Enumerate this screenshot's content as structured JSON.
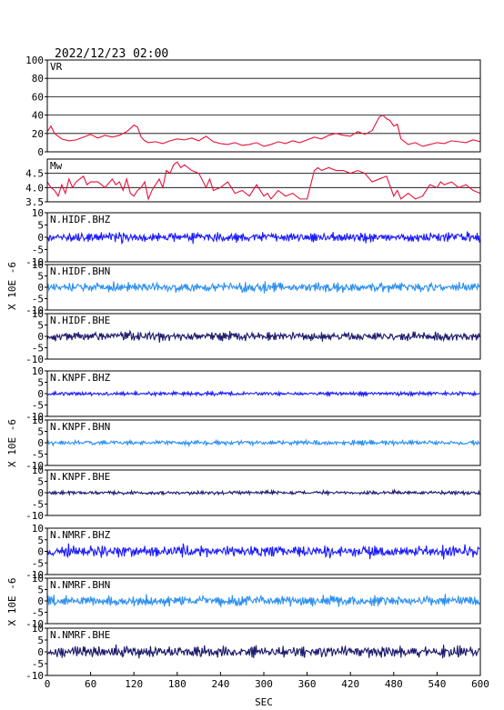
{
  "title": "2022/12/23 02:00",
  "chart_data": {
    "type": "line",
    "xlabel": "SEC",
    "xlim": [
      0,
      600
    ],
    "xticks": [
      0,
      60,
      120,
      180,
      240,
      300,
      360,
      420,
      480,
      540,
      600
    ],
    "panels": [
      {
        "id": "vr",
        "label": "VR",
        "ylim": [
          0,
          100
        ],
        "yticks": [
          0,
          20,
          40,
          60,
          80,
          100
        ],
        "grid": true,
        "color": "#e8103c",
        "x": [
          0,
          5,
          10,
          20,
          30,
          40,
          50,
          60,
          70,
          80,
          90,
          100,
          110,
          120,
          125,
          130,
          135,
          140,
          150,
          160,
          170,
          180,
          190,
          200,
          210,
          220,
          230,
          240,
          250,
          260,
          270,
          280,
          290,
          300,
          310,
          320,
          330,
          340,
          350,
          360,
          370,
          380,
          390,
          400,
          410,
          420,
          430,
          440,
          450,
          460,
          465,
          470,
          475,
          480,
          485,
          490,
          500,
          510,
          520,
          530,
          540,
          550,
          560,
          570,
          580,
          590,
          600
        ],
        "values": [
          22,
          28,
          20,
          14,
          12,
          13,
          16,
          19,
          15,
          18,
          16,
          18,
          22,
          29,
          27,
          16,
          12,
          10,
          11,
          9,
          12,
          14,
          13,
          15,
          12,
          17,
          11,
          9,
          8,
          10,
          7,
          8,
          10,
          6,
          8,
          11,
          9,
          12,
          10,
          13,
          16,
          14,
          18,
          20,
          18,
          17,
          22,
          19,
          23,
          38,
          40,
          36,
          34,
          28,
          30,
          14,
          8,
          10,
          6,
          8,
          10,
          9,
          12,
          11,
          10,
          13,
          11
        ]
      },
      {
        "id": "mw",
        "label": "Mw",
        "ylim": [
          3.5,
          5.0
        ],
        "yticks": [
          3.5,
          4.0,
          4.5
        ],
        "ytick_labels": [
          "3.5",
          "4.0",
          "4.5"
        ],
        "grid": true,
        "color": "#e8103c",
        "x": [
          0,
          5,
          10,
          15,
          20,
          25,
          30,
          35,
          40,
          50,
          55,
          60,
          70,
          80,
          90,
          95,
          100,
          105,
          110,
          115,
          120,
          125,
          130,
          135,
          140,
          145,
          150,
          155,
          160,
          165,
          170,
          175,
          180,
          185,
          190,
          200,
          210,
          220,
          225,
          230,
          240,
          250,
          260,
          270,
          280,
          290,
          300,
          305,
          310,
          320,
          330,
          340,
          350,
          360,
          370,
          375,
          380,
          390,
          400,
          410,
          420,
          430,
          440,
          450,
          460,
          470,
          480,
          485,
          490,
          500,
          510,
          520,
          530,
          540,
          545,
          550,
          560,
          570,
          580,
          590,
          600
        ],
        "values": [
          4.2,
          4.0,
          3.9,
          3.7,
          4.1,
          3.8,
          4.3,
          4.0,
          4.2,
          4.4,
          4.1,
          4.2,
          4.2,
          4.0,
          4.3,
          4.1,
          4.2,
          3.9,
          4.3,
          3.8,
          3.7,
          3.9,
          4.0,
          4.2,
          3.6,
          3.9,
          4.1,
          4.3,
          4.0,
          4.6,
          4.5,
          4.8,
          4.9,
          4.7,
          4.8,
          4.6,
          4.5,
          4.0,
          4.3,
          3.9,
          4.0,
          4.2,
          3.8,
          3.9,
          3.7,
          4.1,
          3.7,
          3.8,
          3.6,
          3.9,
          3.7,
          3.8,
          3.6,
          3.6,
          4.6,
          4.7,
          4.6,
          4.7,
          4.6,
          4.6,
          4.5,
          4.6,
          4.5,
          4.2,
          4.3,
          4.4,
          3.7,
          3.9,
          3.6,
          3.8,
          3.6,
          3.7,
          4.1,
          4.0,
          4.2,
          4.1,
          4.2,
          4.0,
          4.1,
          3.9,
          3.8
        ]
      },
      {
        "id": "hidf-bhz",
        "label": "N.HIDF.BHZ",
        "ylim": [
          -10,
          10
        ],
        "yticks": [
          -10,
          -5,
          0,
          5,
          10
        ],
        "color": "#1a1aff",
        "seed": 11,
        "amp": 2.6,
        "bursts": [
          [
            105,
            6.5
          ],
          [
            100,
            4.5
          ]
        ]
      },
      {
        "id": "hidf-bhn",
        "label": "N.HIDF.BHN",
        "ylim": [
          -10,
          10
        ],
        "yticks": [
          -10,
          -5,
          0,
          5,
          10
        ],
        "color": "#2b8ff0",
        "seed": 23,
        "amp": 2.8,
        "bursts": [
          [
            460,
            4.0
          ],
          [
            300,
            3.5
          ]
        ]
      },
      {
        "id": "hidf-bhe",
        "label": "N.HIDF.BHE",
        "ylim": [
          -10,
          10
        ],
        "yticks": [
          -10,
          -5,
          0,
          5,
          10
        ],
        "color": "#1c1a6b",
        "seed": 37,
        "amp": 2.7,
        "bursts": [
          [
            112,
            5.0
          ],
          [
            585,
            4.0
          ]
        ]
      },
      {
        "id": "knpf-bhz",
        "label": "N.KNPF.BHZ",
        "ylim": [
          -10,
          10
        ],
        "yticks": [
          -10,
          -5,
          0,
          5,
          10
        ],
        "color": "#1a1aff",
        "seed": 41,
        "amp": 1.2,
        "bursts": []
      },
      {
        "id": "knpf-bhn",
        "label": "N.KNPF.BHN",
        "ylim": [
          -10,
          10
        ],
        "yticks": [
          -10,
          -5,
          0,
          5,
          10
        ],
        "color": "#2b8ff0",
        "seed": 53,
        "amp": 1.5,
        "bursts": []
      },
      {
        "id": "knpf-bhe",
        "label": "N.KNPF.BHE",
        "ylim": [
          -10,
          10
        ],
        "yticks": [
          -10,
          -5,
          0,
          5,
          10
        ],
        "color": "#1c1a6b",
        "seed": 67,
        "amp": 1.1,
        "bursts": [
          [
            480,
            2.5
          ]
        ]
      },
      {
        "id": "nmrf-bhz",
        "label": "N.NMRF.BHZ",
        "ylim": [
          -10,
          10
        ],
        "yticks": [
          -10,
          -5,
          0,
          5,
          10
        ],
        "color": "#1a1aff",
        "seed": 71,
        "amp": 3.6,
        "bursts": [
          [
            215,
            5.5
          ],
          [
            455,
            5.5
          ],
          [
            550,
            5.0
          ]
        ]
      },
      {
        "id": "nmrf-bhn",
        "label": "N.NMRF.BHN",
        "ylim": [
          -10,
          10
        ],
        "yticks": [
          -10,
          -5,
          0,
          5,
          10
        ],
        "color": "#2b8ff0",
        "seed": 83,
        "amp": 3.3,
        "bursts": [
          [
            390,
            4.5
          ],
          [
            580,
            4.0
          ]
        ]
      },
      {
        "id": "nmrf-bhe",
        "label": "N.NMRF.BHE",
        "ylim": [
          -10,
          10
        ],
        "yticks": [
          -10,
          -5,
          0,
          5,
          10
        ],
        "color": "#1c1a6b",
        "seed": 97,
        "amp": 3.3,
        "bursts": [
          [
            245,
            5.0
          ],
          [
            415,
            4.5
          ],
          [
            530,
            4.0
          ]
        ]
      }
    ]
  }
}
